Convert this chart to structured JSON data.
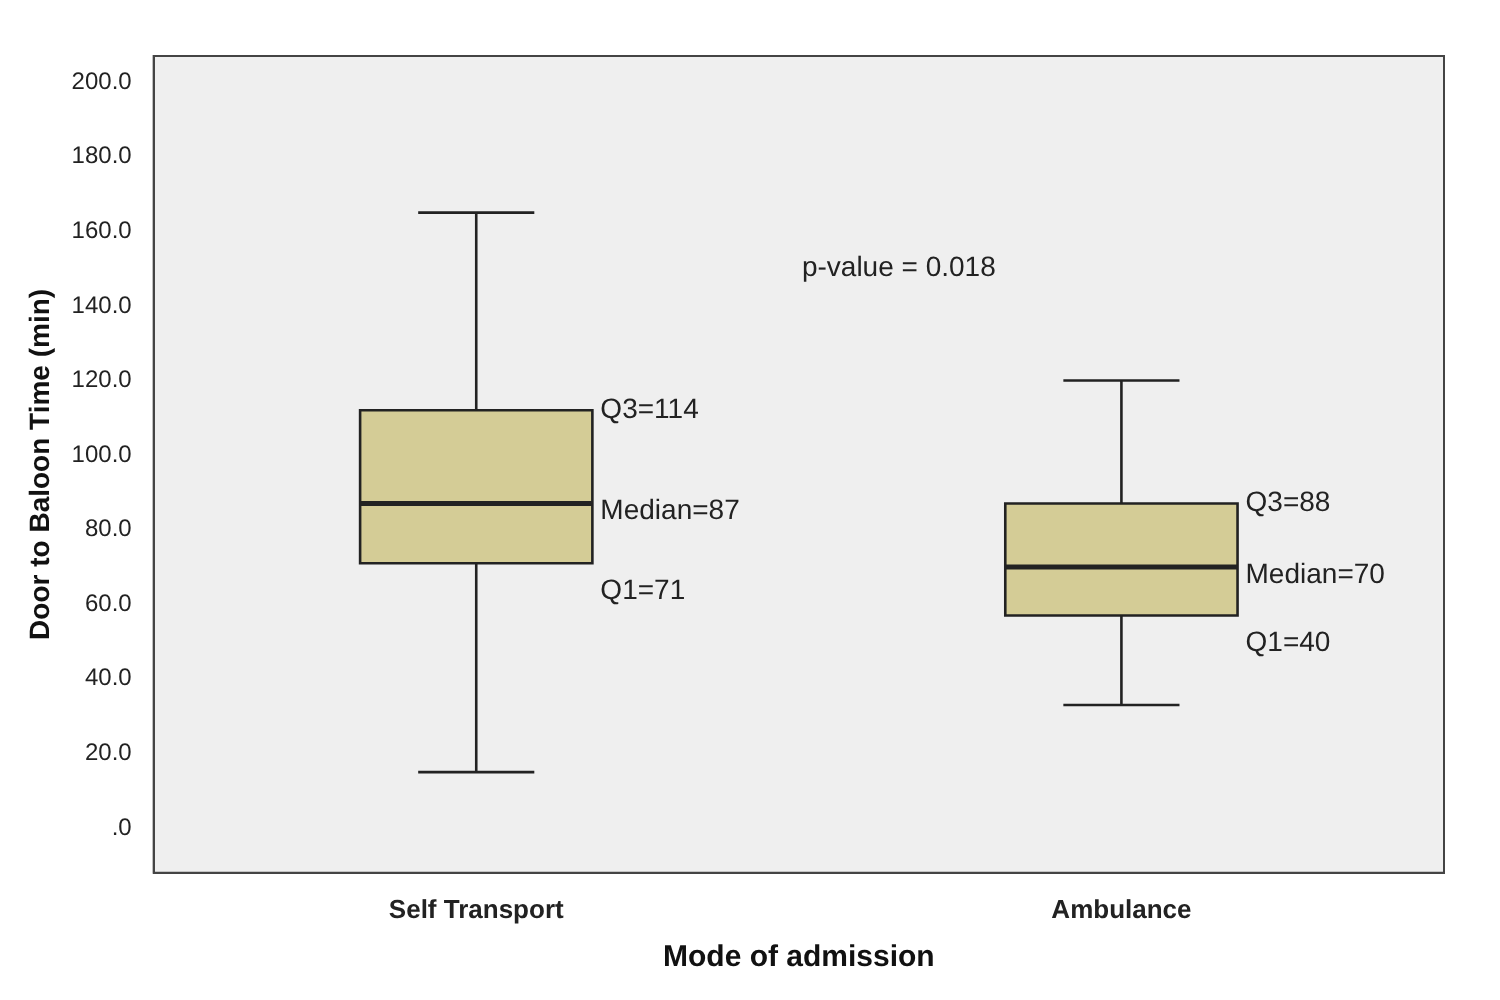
{
  "chart_data": {
    "type": "box",
    "xlabel": "Mode of admission",
    "ylabel": "Door to Baloon Time (min)",
    "categories": [
      "Self Transport",
      "Ambulance"
    ],
    "boxes": [
      {
        "low": 15,
        "q1": 71,
        "median": 87,
        "q3": 112,
        "high": 165
      },
      {
        "low": 33,
        "q1": 57,
        "median": 70,
        "q3": 87,
        "high": 120
      }
    ],
    "color": "#d4cc96",
    "ylim": [
      -12,
      207
    ],
    "yticks": [
      {
        "value": 0,
        "label": ".0"
      },
      {
        "value": 20,
        "label": "20.0"
      },
      {
        "value": 40,
        "label": "40.0"
      },
      {
        "value": 60,
        "label": "60.0"
      },
      {
        "value": 80,
        "label": "80.0"
      },
      {
        "value": 100,
        "label": "100.0"
      },
      {
        "value": 120,
        "label": "120.0"
      },
      {
        "value": 140,
        "label": "140.0"
      },
      {
        "value": 160,
        "label": "160.0"
      },
      {
        "value": 180,
        "label": "180.0"
      },
      {
        "value": 200,
        "label": "200.0"
      }
    ],
    "grid": false,
    "legend": false,
    "annotations": [
      "p-value = 0.018",
      "Q3=114",
      "Median=87",
      "Q1=71",
      "Q3=88",
      "Median=70",
      "Q1=40"
    ]
  }
}
